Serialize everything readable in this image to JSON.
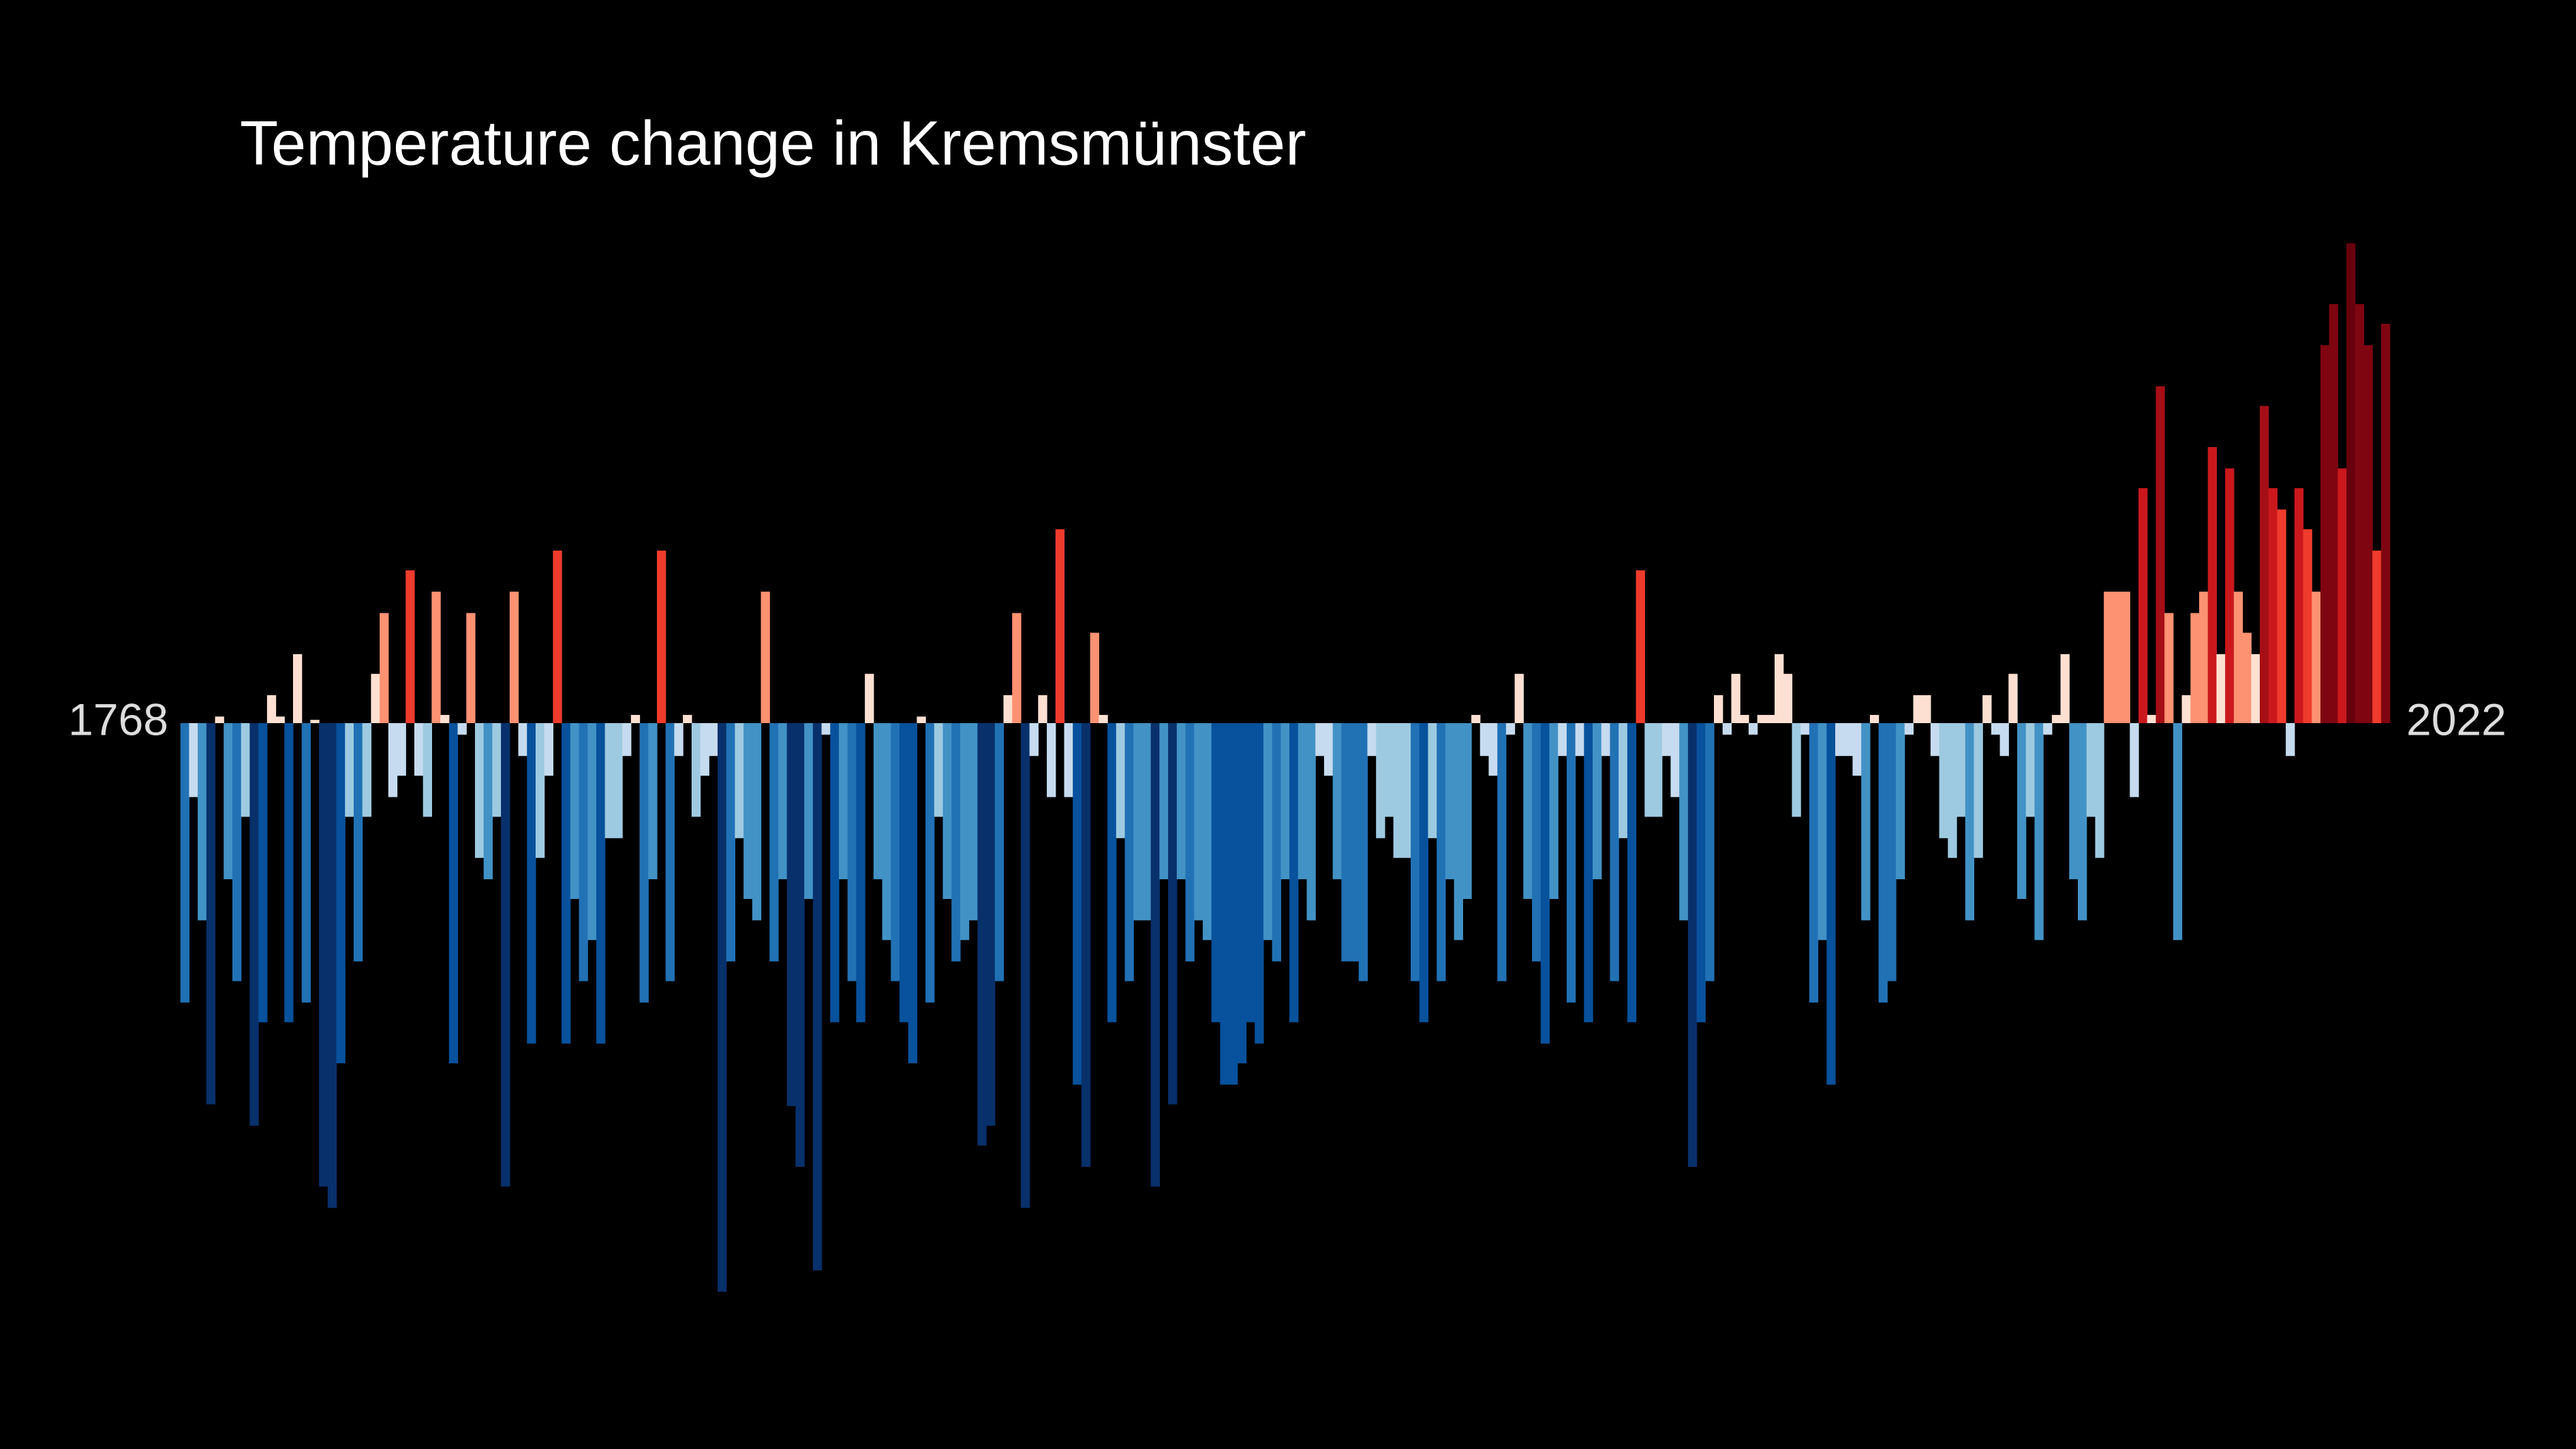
{
  "chart_data": {
    "type": "bar",
    "title": "Temperature change in Kremsmünster",
    "categories": [
      "1768",
      null,
      null,
      null,
      null,
      null,
      null,
      null,
      null,
      null,
      null,
      null,
      null,
      null,
      null,
      null,
      null,
      null,
      null,
      null,
      null,
      null,
      null,
      null,
      null,
      null,
      null,
      null,
      null,
      null,
      null,
      null,
      null,
      null,
      null,
      null,
      null,
      null,
      null,
      null,
      null,
      null,
      null,
      null,
      null,
      null,
      null,
      null,
      null,
      null,
      null,
      null,
      null,
      null,
      null,
      null,
      null,
      null,
      null,
      null,
      null,
      null,
      null,
      null,
      null,
      null,
      null,
      null,
      null,
      null,
      null,
      null,
      null,
      null,
      null,
      null,
      null,
      null,
      null,
      null,
      null,
      null,
      null,
      null,
      null,
      null,
      null,
      null,
      null,
      null,
      null,
      null,
      null,
      null,
      null,
      null,
      null,
      null,
      null,
      null,
      null,
      null,
      null,
      null,
      null,
      null,
      null,
      null,
      null,
      null,
      null,
      null,
      null,
      null,
      null,
      null,
      null,
      null,
      null,
      null,
      null,
      null,
      null,
      null,
      null,
      null,
      null,
      null,
      null,
      null,
      null,
      null,
      null,
      null,
      null,
      null,
      null,
      null,
      null,
      null,
      null,
      null,
      null,
      null,
      null,
      null,
      null,
      null,
      null,
      null,
      null,
      null,
      null,
      null,
      null,
      null,
      null,
      null,
      null,
      null,
      null,
      null,
      null,
      null,
      null,
      null,
      null,
      null,
      null,
      null,
      null,
      null,
      null,
      null,
      null,
      null,
      null,
      null,
      null,
      null,
      null,
      null,
      null,
      null,
      null,
      null,
      null,
      null,
      null,
      null,
      null,
      null,
      null,
      null,
      null,
      null,
      null,
      null,
      null,
      null,
      null,
      null,
      null,
      null,
      null,
      null,
      null,
      null,
      null,
      null,
      null,
      null,
      null,
      null,
      null,
      null,
      null,
      null,
      null,
      null,
      null,
      null,
      null,
      null,
      null,
      null,
      null,
      null,
      null,
      null,
      null,
      null,
      null,
      null,
      null,
      null,
      null,
      null,
      null,
      null,
      null,
      null,
      null,
      null,
      null,
      null,
      null,
      null,
      null,
      null,
      null,
      null,
      null,
      null,
      "2022"
    ],
    "values": [
      -1.7,
      -0.45,
      -1.2,
      -2.32,
      0.04,
      -0.95,
      -1.57,
      -0.57,
      -2.45,
      -1.82,
      0.17,
      0.04,
      -1.82,
      0.42,
      -1.7,
      0.02,
      -2.82,
      -2.95,
      -2.07,
      -0.57,
      -1.45,
      -0.57,
      0.3,
      0.67,
      -0.45,
      -0.32,
      0.93,
      -0.32,
      -0.57,
      0.8,
      0.05,
      -2.07,
      -0.07,
      0.67,
      -0.82,
      -0.95,
      -0.57,
      -2.82,
      0.8,
      -0.2,
      -1.95,
      -0.82,
      -0.32,
      1.05,
      -1.95,
      -1.07,
      -1.57,
      -1.32,
      -1.95,
      -0.7,
      -0.7,
      -0.2,
      0.05,
      -1.7,
      -0.95,
      1.05,
      -1.57,
      -0.2,
      0.05,
      -0.57,
      -0.32,
      -0.2,
      -3.46,
      -1.45,
      -0.7,
      -1.07,
      -1.2,
      0.8,
      -1.45,
      -0.95,
      -2.33,
      -2.7,
      -1.07,
      -3.33,
      -0.07,
      -1.82,
      -0.95,
      -1.57,
      -1.82,
      0.3,
      -0.95,
      -1.32,
      -1.57,
      -1.82,
      -2.07,
      0.04,
      -1.7,
      -0.57,
      -1.07,
      -1.45,
      -1.32,
      -1.2,
      -2.57,
      -2.45,
      -1.57,
      0.17,
      0.67,
      -2.95,
      -0.2,
      0.17,
      -0.45,
      1.18,
      -0.45,
      -2.2,
      -2.7,
      0.55,
      0.05,
      -1.82,
      -0.7,
      -1.57,
      -1.2,
      -1.2,
      -2.82,
      -0.95,
      -2.32,
      -0.95,
      -1.45,
      -1.2,
      -1.32,
      -1.82,
      -2.2,
      -2.2,
      -2.07,
      -1.82,
      -1.95,
      -1.32,
      -1.45,
      -0.95,
      -1.82,
      -0.95,
      -1.2,
      -0.2,
      -0.32,
      -0.95,
      -1.45,
      -1.45,
      -1.57,
      -0.2,
      -0.7,
      -0.57,
      -0.82,
      -0.82,
      -1.57,
      -1.82,
      -0.7,
      -1.57,
      -0.95,
      -1.32,
      -1.07,
      0.05,
      -0.2,
      -0.32,
      -1.57,
      -0.07,
      0.3,
      -1.07,
      -1.45,
      -1.95,
      -1.07,
      -0.2,
      -1.7,
      -0.2,
      -1.82,
      -0.95,
      -0.2,
      -1.57,
      -0.7,
      -1.82,
      0.93,
      -0.57,
      -0.57,
      -0.2,
      -0.45,
      -1.2,
      -2.7,
      -1.82,
      -1.57,
      0.17,
      -0.07,
      0.3,
      0.05,
      -0.07,
      0.05,
      0.05,
      0.42,
      0.3,
      -0.57,
      -0.07,
      -1.7,
      -1.32,
      -2.2,
      -0.2,
      -0.2,
      -0.32,
      -1.2,
      0.05,
      -1.7,
      -1.57,
      -0.95,
      -0.07,
      0.17,
      0.17,
      -0.2,
      -0.7,
      -0.82,
      -0.57,
      -1.2,
      -0.82,
      0.17,
      -0.07,
      -0.2,
      0.3,
      -1.07,
      -0.57,
      -1.32,
      -0.07,
      0.05,
      0.42,
      -0.95,
      -1.2,
      -0.57,
      -0.82,
      0.8,
      0.8,
      0.8,
      -0.45,
      1.43,
      0.05,
      2.05,
      0.67,
      -1.32,
      0.17,
      0.67,
      0.8,
      1.68,
      0.42,
      1.55,
      0.8,
      0.55,
      0.42,
      1.93,
      1.43,
      1.3,
      -0.2,
      1.43,
      1.18,
      0.8,
      2.3,
      2.55,
      1.55,
      2.92,
      2.55,
      2.3,
      1.05,
      2.43
    ],
    "ylim": [
      -3.6,
      3.6
    ],
    "colormap": [
      "#08306b",
      "#08306b",
      "#08306b",
      "#08519c",
      "#2171b5",
      "#4292c6",
      "#9ecae1",
      "#c6dbef",
      "#fee0d2",
      "#fc9272",
      "#ef3b2c",
      "#cb181d",
      "#a50f15",
      "#7f0510",
      "#67000d",
      "#67000d"
    ],
    "background": "#000000"
  }
}
